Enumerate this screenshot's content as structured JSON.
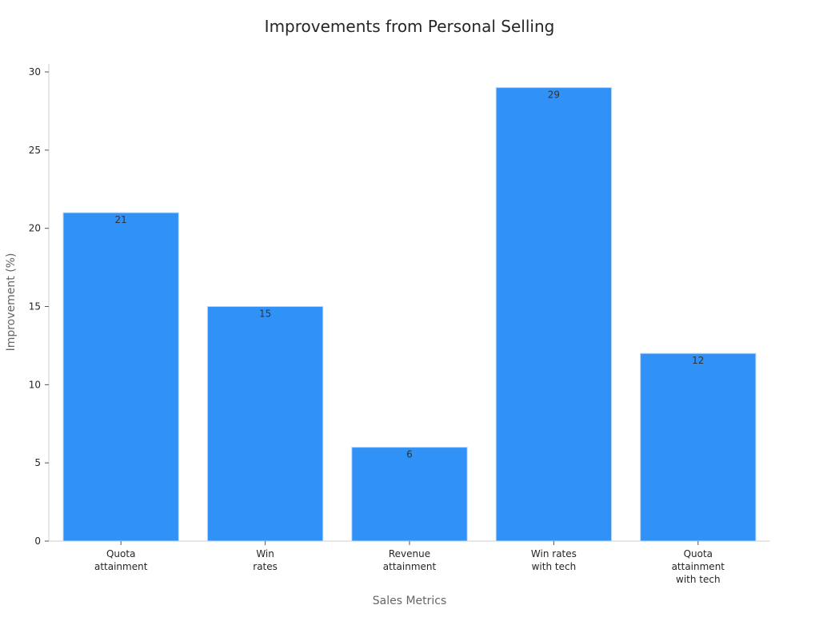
{
  "chart_data": {
    "type": "bar",
    "title": "Improvements from Personal Selling",
    "xlabel": "Sales Metrics",
    "ylabel": "Improvement (%)",
    "categories": [
      [
        "Quota",
        "attainment"
      ],
      [
        "Win",
        "rates"
      ],
      [
        "Revenue",
        "attainment"
      ],
      [
        "Win rates",
        "with tech"
      ],
      [
        "Quota",
        "attainment",
        "with tech"
      ]
    ],
    "values": [
      21,
      15,
      6,
      29,
      12
    ],
    "data_labels": [
      "21",
      "15",
      "6",
      "29",
      "12"
    ],
    "ylim": [
      0,
      30
    ],
    "yticks": [
      0,
      5,
      10,
      15,
      20,
      25,
      30
    ],
    "grid": false,
    "legend": "none",
    "colors": {
      "bar": "#3091f7",
      "bar_stroke": "#b9d6f7",
      "axis": "#cfcfcf",
      "tick_text": "#262626",
      "label_text": "#666666",
      "title_text": "#262626",
      "data_label_text": "#333333"
    }
  }
}
